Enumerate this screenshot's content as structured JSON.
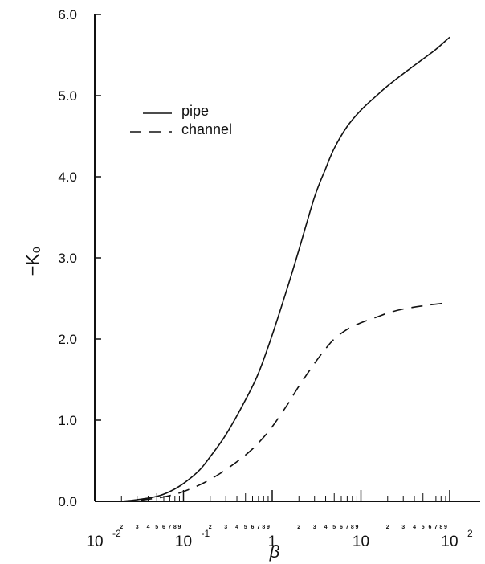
{
  "chart_data": {
    "type": "line",
    "xlabel": "β",
    "ylabel": "−K₀",
    "xscale": "log",
    "xlim": [
      0.01,
      100
    ],
    "ylim": [
      0,
      6
    ],
    "y_ticks": [
      "0.0",
      "1.0",
      "2.0",
      "3.0",
      "4.0",
      "5.0",
      "6.0"
    ],
    "x_decade_labels": [
      {
        "value": 0.01,
        "base": "10",
        "exp": "-2"
      },
      {
        "value": 0.1,
        "base": "10",
        "exp": "-1"
      },
      {
        "value": 1,
        "base": "1",
        "exp": ""
      },
      {
        "value": 10,
        "base": "10",
        "exp": ""
      },
      {
        "value": 100,
        "base": "10",
        "exp": "2"
      }
    ],
    "x_minor_labels": [
      "2",
      "3",
      "4",
      "5",
      "6",
      "7",
      "8",
      "9"
    ],
    "legend_position": "upper-left",
    "series": [
      {
        "name": "pipe",
        "style": "solid",
        "x": [
          0.02,
          0.03,
          0.05,
          0.07,
          0.1,
          0.15,
          0.2,
          0.3,
          0.5,
          0.7,
          1,
          1.5,
          2,
          3,
          4,
          5,
          7,
          10,
          15,
          20,
          30,
          50,
          70,
          100
        ],
        "y": [
          0.0,
          0.02,
          0.06,
          0.12,
          0.22,
          0.38,
          0.55,
          0.82,
          1.25,
          1.58,
          2.05,
          2.65,
          3.1,
          3.75,
          4.1,
          4.35,
          4.62,
          4.82,
          5.0,
          5.12,
          5.27,
          5.45,
          5.57,
          5.72
        ]
      },
      {
        "name": "channel",
        "style": "dashed",
        "x": [
          0.02,
          0.03,
          0.05,
          0.07,
          0.1,
          0.15,
          0.2,
          0.3,
          0.5,
          0.7,
          1,
          1.5,
          2,
          3,
          4,
          5,
          7,
          10,
          15,
          20,
          30,
          50,
          70,
          100
        ],
        "y": [
          0.0,
          0.01,
          0.04,
          0.07,
          0.12,
          0.2,
          0.27,
          0.39,
          0.57,
          0.72,
          0.92,
          1.2,
          1.42,
          1.7,
          1.88,
          2.0,
          2.12,
          2.2,
          2.27,
          2.32,
          2.37,
          2.41,
          2.43,
          2.45
        ]
      }
    ]
  }
}
